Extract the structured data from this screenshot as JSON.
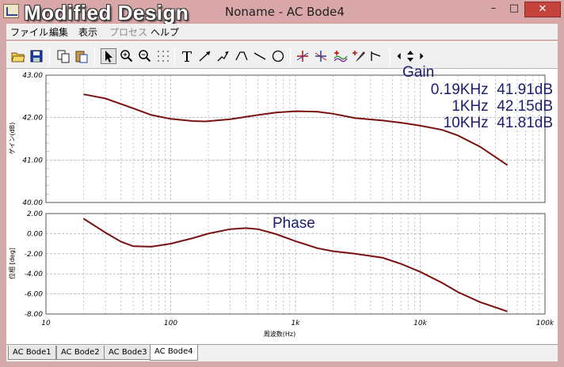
{
  "window": {
    "overlay_title": "Modified Design",
    "title": "Noname - AC Bode4",
    "minimize": "–",
    "maximize": "□",
    "close": "✕"
  },
  "menu": [
    "ファイル",
    "編集",
    "表示",
    "プロセス",
    "ヘルプ"
  ],
  "toolbar": {
    "icons": [
      "open-folder-icon",
      "save-disk-icon",
      "copy-icon",
      "paste-icon",
      "select-arrow-icon",
      "zoom-in-icon",
      "zoom-out-icon",
      "zoom-100-icon",
      "grid-icon",
      "text-tool-icon",
      "arrow-line-icon",
      "arrow-line-2-icon",
      "polyline-icon",
      "line-icon",
      "ellipse-icon",
      "cursor-a-icon",
      "cursor-b-icon",
      "curve-add-icon",
      "curve-pick-icon",
      "curve-edit-icon",
      "step-left-icon",
      "step-updown-icon",
      "step-right-icon"
    ]
  },
  "gain": {
    "title": "Gain",
    "readouts": [
      "0.19KHz  41.91dB",
      "1KHz  42.15dB",
      "10KHz  41.81dB"
    ],
    "ylabel": "ゲイン(dB)",
    "yticks": [
      "43.00",
      "42.00",
      "41.00",
      "40.00"
    ]
  },
  "phase": {
    "title": "Phase",
    "ylabel": "位相 [deg]",
    "yticks": [
      "2.00",
      "0.00",
      "-2.00",
      "-4.00",
      "-6.00",
      "-8.00"
    ]
  },
  "xaxis": {
    "label": "周波数(Hz)",
    "ticks": [
      "10",
      "100",
      "1k",
      "10k",
      "100k"
    ]
  },
  "chart_data": [
    {
      "type": "line",
      "title": "Gain",
      "xlabel": "周波数(Hz)",
      "ylabel": "ゲイン(dB)",
      "xscale": "log",
      "xlim": [
        10,
        100000
      ],
      "ylim": [
        40,
        43
      ],
      "grid": true,
      "color": "#7a1010",
      "x": [
        20,
        30,
        50,
        70,
        100,
        150,
        190,
        300,
        500,
        700,
        1000,
        1500,
        2000,
        3000,
        5000,
        7000,
        10000,
        15000,
        20000,
        30000,
        50000
      ],
      "y": [
        42.55,
        42.45,
        42.22,
        42.06,
        41.97,
        41.92,
        41.91,
        41.96,
        42.06,
        42.12,
        42.15,
        42.14,
        42.09,
        41.99,
        41.93,
        41.88,
        41.81,
        41.71,
        41.58,
        41.32,
        40.88
      ],
      "annotations": [
        "0.19KHz  41.91dB",
        "1KHz  42.15dB",
        "10KHz  41.81dB"
      ]
    },
    {
      "type": "line",
      "title": "Phase",
      "xlabel": "周波数(Hz)",
      "ylabel": "位相 [deg]",
      "xscale": "log",
      "xlim": [
        10,
        100000
      ],
      "ylim": [
        -8,
        2
      ],
      "grid": true,
      "color": "#7a1010",
      "x": [
        20,
        30,
        40,
        50,
        70,
        100,
        150,
        200,
        300,
        400,
        500,
        700,
        1000,
        1500,
        2000,
        3000,
        5000,
        7000,
        10000,
        15000,
        20000,
        30000,
        50000
      ],
      "y": [
        1.5,
        0.1,
        -0.8,
        -1.25,
        -1.3,
        -1.0,
        -0.45,
        0.0,
        0.45,
        0.55,
        0.45,
        -0.05,
        -0.75,
        -1.45,
        -1.75,
        -2.0,
        -2.4,
        -3.0,
        -3.8,
        -4.9,
        -5.8,
        -6.8,
        -7.75
      ]
    }
  ]
}
